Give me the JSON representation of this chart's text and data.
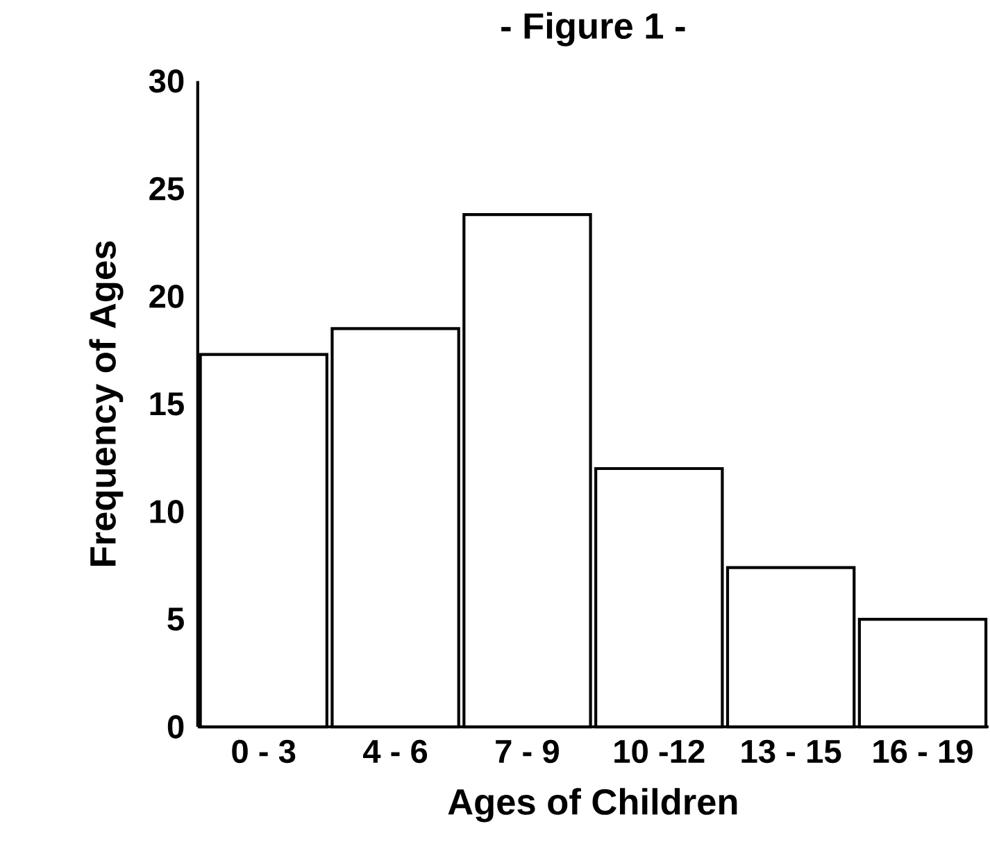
{
  "chart_data": {
    "type": "bar",
    "title": "- Figure 1 -",
    "xlabel": "Ages of Children",
    "ylabel": "Frequency of Ages",
    "categories": [
      "0 - 3",
      "4 - 6",
      "7 - 9",
      "10 -12",
      "13 - 15",
      "16 - 19"
    ],
    "values": [
      17.3,
      18.5,
      23.8,
      12,
      7.4,
      5
    ],
    "color": "#ffffff",
    "ylim": [
      0,
      30
    ],
    "yticks": [
      0,
      5,
      10,
      15,
      20,
      25,
      30
    ],
    "grid": false
  }
}
